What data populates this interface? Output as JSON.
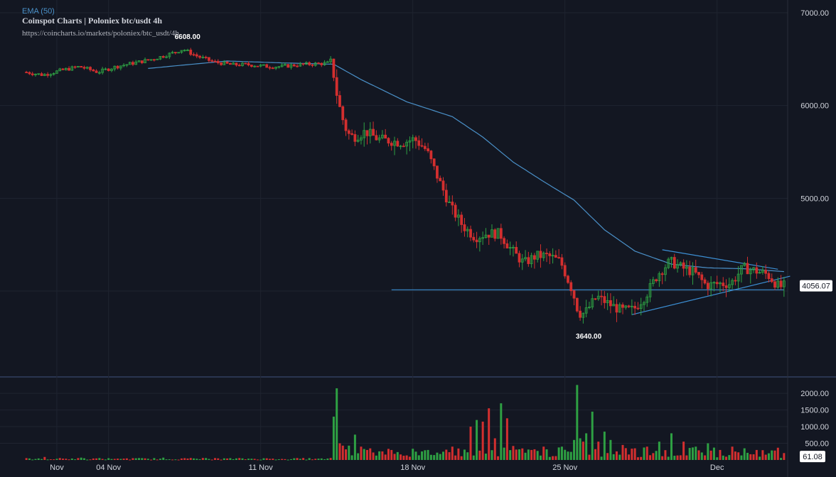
{
  "header": {
    "ema_label": "EMA (50)",
    "title": "Coinspot Charts | Poloniex  btc/usdt  4h",
    "url": "https://coincharts.io/markets/poloniex/btc_usdt/4h"
  },
  "colors": {
    "background": "#131722",
    "grid": "#1f2430",
    "text": "#d1d4dc",
    "muted": "#b2b5be",
    "up": "#26a69a",
    "up_candle": "#2ea043",
    "down": "#d32f2f",
    "ema": "#4a90c8",
    "trendline": "#3c8fd4",
    "price_label_bg": "#ffffff"
  },
  "chart_data": {
    "type": "candlestick",
    "timeframe": "4h",
    "symbol": "btc/usdt",
    "x_tick_labels": [
      "Nov",
      "04 Nov",
      "11 Nov",
      "18 Nov",
      "25 Nov",
      "Dec"
    ],
    "price_axis": {
      "ticks": [
        4000,
        5000,
        6000,
        7000
      ],
      "tick_labels": [
        "",
        "5000.00",
        "6000.00",
        "7000.00"
      ],
      "ylim": [
        3250,
        7000
      ]
    },
    "volume_axis": {
      "ticks": [
        500,
        1000,
        1500,
        2000
      ],
      "tick_labels": [
        "500.00",
        "1000.00",
        "1500.00",
        "2000.00"
      ],
      "ylim": [
        0,
        2300
      ]
    },
    "annotations": {
      "high_label": "6608.00",
      "high_value": 6608,
      "low_label": "3640.00",
      "low_value": 3640,
      "last_price_label": "4056.07",
      "last_price": 4056.07,
      "last_volume_label": "61.08",
      "last_volume": 61.08
    },
    "ohlc_keypoints": [
      [
        0,
        6360
      ],
      [
        6,
        6330
      ],
      [
        12,
        6380
      ],
      [
        18,
        6420
      ],
      [
        24,
        6360
      ],
      [
        30,
        6420
      ],
      [
        36,
        6460
      ],
      [
        42,
        6500
      ],
      [
        48,
        6560
      ],
      [
        52,
        6608
      ],
      [
        56,
        6540
      ],
      [
        62,
        6470
      ],
      [
        68,
        6440
      ],
      [
        74,
        6440
      ],
      [
        80,
        6420
      ],
      [
        84,
        6420
      ],
      [
        90,
        6440
      ],
      [
        96,
        6450
      ],
      [
        101,
        6460
      ],
      [
        102,
        6200
      ],
      [
        104,
        5900
      ],
      [
        106,
        5700
      ],
      [
        108,
        5660
      ],
      [
        112,
        5720
      ],
      [
        116,
        5640
      ],
      [
        120,
        5620
      ],
      [
        124,
        5600
      ],
      [
        128,
        5640
      ],
      [
        132,
        5520
      ],
      [
        136,
        5200
      ],
      [
        140,
        4900
      ],
      [
        144,
        4700
      ],
      [
        148,
        4580
      ],
      [
        152,
        4620
      ],
      [
        156,
        4620
      ],
      [
        160,
        4440
      ],
      [
        164,
        4300
      ],
      [
        168,
        4380
      ],
      [
        172,
        4380
      ],
      [
        176,
        4320
      ],
      [
        180,
        4000
      ],
      [
        182,
        3760
      ],
      [
        184,
        3760
      ],
      [
        188,
        3940
      ],
      [
        192,
        3860
      ],
      [
        196,
        3790
      ],
      [
        200,
        3800
      ],
      [
        204,
        3950
      ],
      [
        208,
        4180
      ],
      [
        212,
        4320
      ],
      [
        216,
        4250
      ],
      [
        220,
        4200
      ],
      [
        224,
        4060
      ],
      [
        228,
        4080
      ],
      [
        232,
        4080
      ],
      [
        236,
        4250
      ],
      [
        240,
        4220
      ],
      [
        244,
        4180
      ],
      [
        248,
        4040
      ],
      [
        249,
        4056
      ]
    ],
    "ema50_keypoints": [
      [
        40,
        6400
      ],
      [
        56,
        6450
      ],
      [
        66,
        6480
      ],
      [
        84,
        6460
      ],
      [
        101,
        6445
      ],
      [
        110,
        6280
      ],
      [
        125,
        6040
      ],
      [
        140,
        5880
      ],
      [
        150,
        5660
      ],
      [
        160,
        5390
      ],
      [
        170,
        5180
      ],
      [
        180,
        4980
      ],
      [
        190,
        4660
      ],
      [
        200,
        4430
      ],
      [
        212,
        4290
      ],
      [
        224,
        4250
      ],
      [
        236,
        4240
      ],
      [
        249,
        4210
      ]
    ],
    "trendlines": [
      {
        "name": "support",
        "from": [
          120,
          4013
        ],
        "to": [
          249,
          4013
        ]
      },
      {
        "name": "upper",
        "from": [
          209,
          4445
        ],
        "to": [
          247,
          4235
        ]
      },
      {
        "name": "lower",
        "from": [
          199,
          3745
        ],
        "to": [
          251,
          4160
        ]
      }
    ],
    "volume_spikes": [
      [
        3,
        30
      ],
      [
        6,
        90
      ],
      [
        12,
        40
      ],
      [
        18,
        70
      ],
      [
        30,
        40
      ],
      [
        45,
        70
      ],
      [
        60,
        30
      ],
      [
        84,
        30
      ],
      [
        96,
        40
      ],
      [
        100,
        60
      ],
      [
        101,
        1300
      ],
      [
        102,
        2150
      ],
      [
        103,
        500
      ],
      [
        104,
        430
      ],
      [
        106,
        430
      ],
      [
        108,
        760
      ],
      [
        110,
        400
      ],
      [
        112,
        300
      ],
      [
        120,
        300
      ],
      [
        128,
        250
      ],
      [
        132,
        300
      ],
      [
        140,
        400
      ],
      [
        146,
        1000
      ],
      [
        148,
        1200
      ],
      [
        150,
        1150
      ],
      [
        152,
        1550
      ],
      [
        154,
        650
      ],
      [
        156,
        1700
      ],
      [
        158,
        1250
      ],
      [
        160,
        420
      ],
      [
        166,
        300
      ],
      [
        170,
        400
      ],
      [
        176,
        400
      ],
      [
        180,
        600
      ],
      [
        181,
        2250
      ],
      [
        182,
        650
      ],
      [
        183,
        550
      ],
      [
        184,
        800
      ],
      [
        186,
        1450
      ],
      [
        188,
        550
      ],
      [
        190,
        850
      ],
      [
        192,
        600
      ],
      [
        196,
        450
      ],
      [
        200,
        350
      ],
      [
        204,
        400
      ],
      [
        208,
        550
      ],
      [
        212,
        800
      ],
      [
        216,
        550
      ],
      [
        220,
        400
      ],
      [
        224,
        500
      ],
      [
        228,
        300
      ],
      [
        232,
        400
      ],
      [
        236,
        350
      ],
      [
        240,
        300
      ],
      [
        244,
        200
      ],
      [
        248,
        61
      ]
    ]
  }
}
